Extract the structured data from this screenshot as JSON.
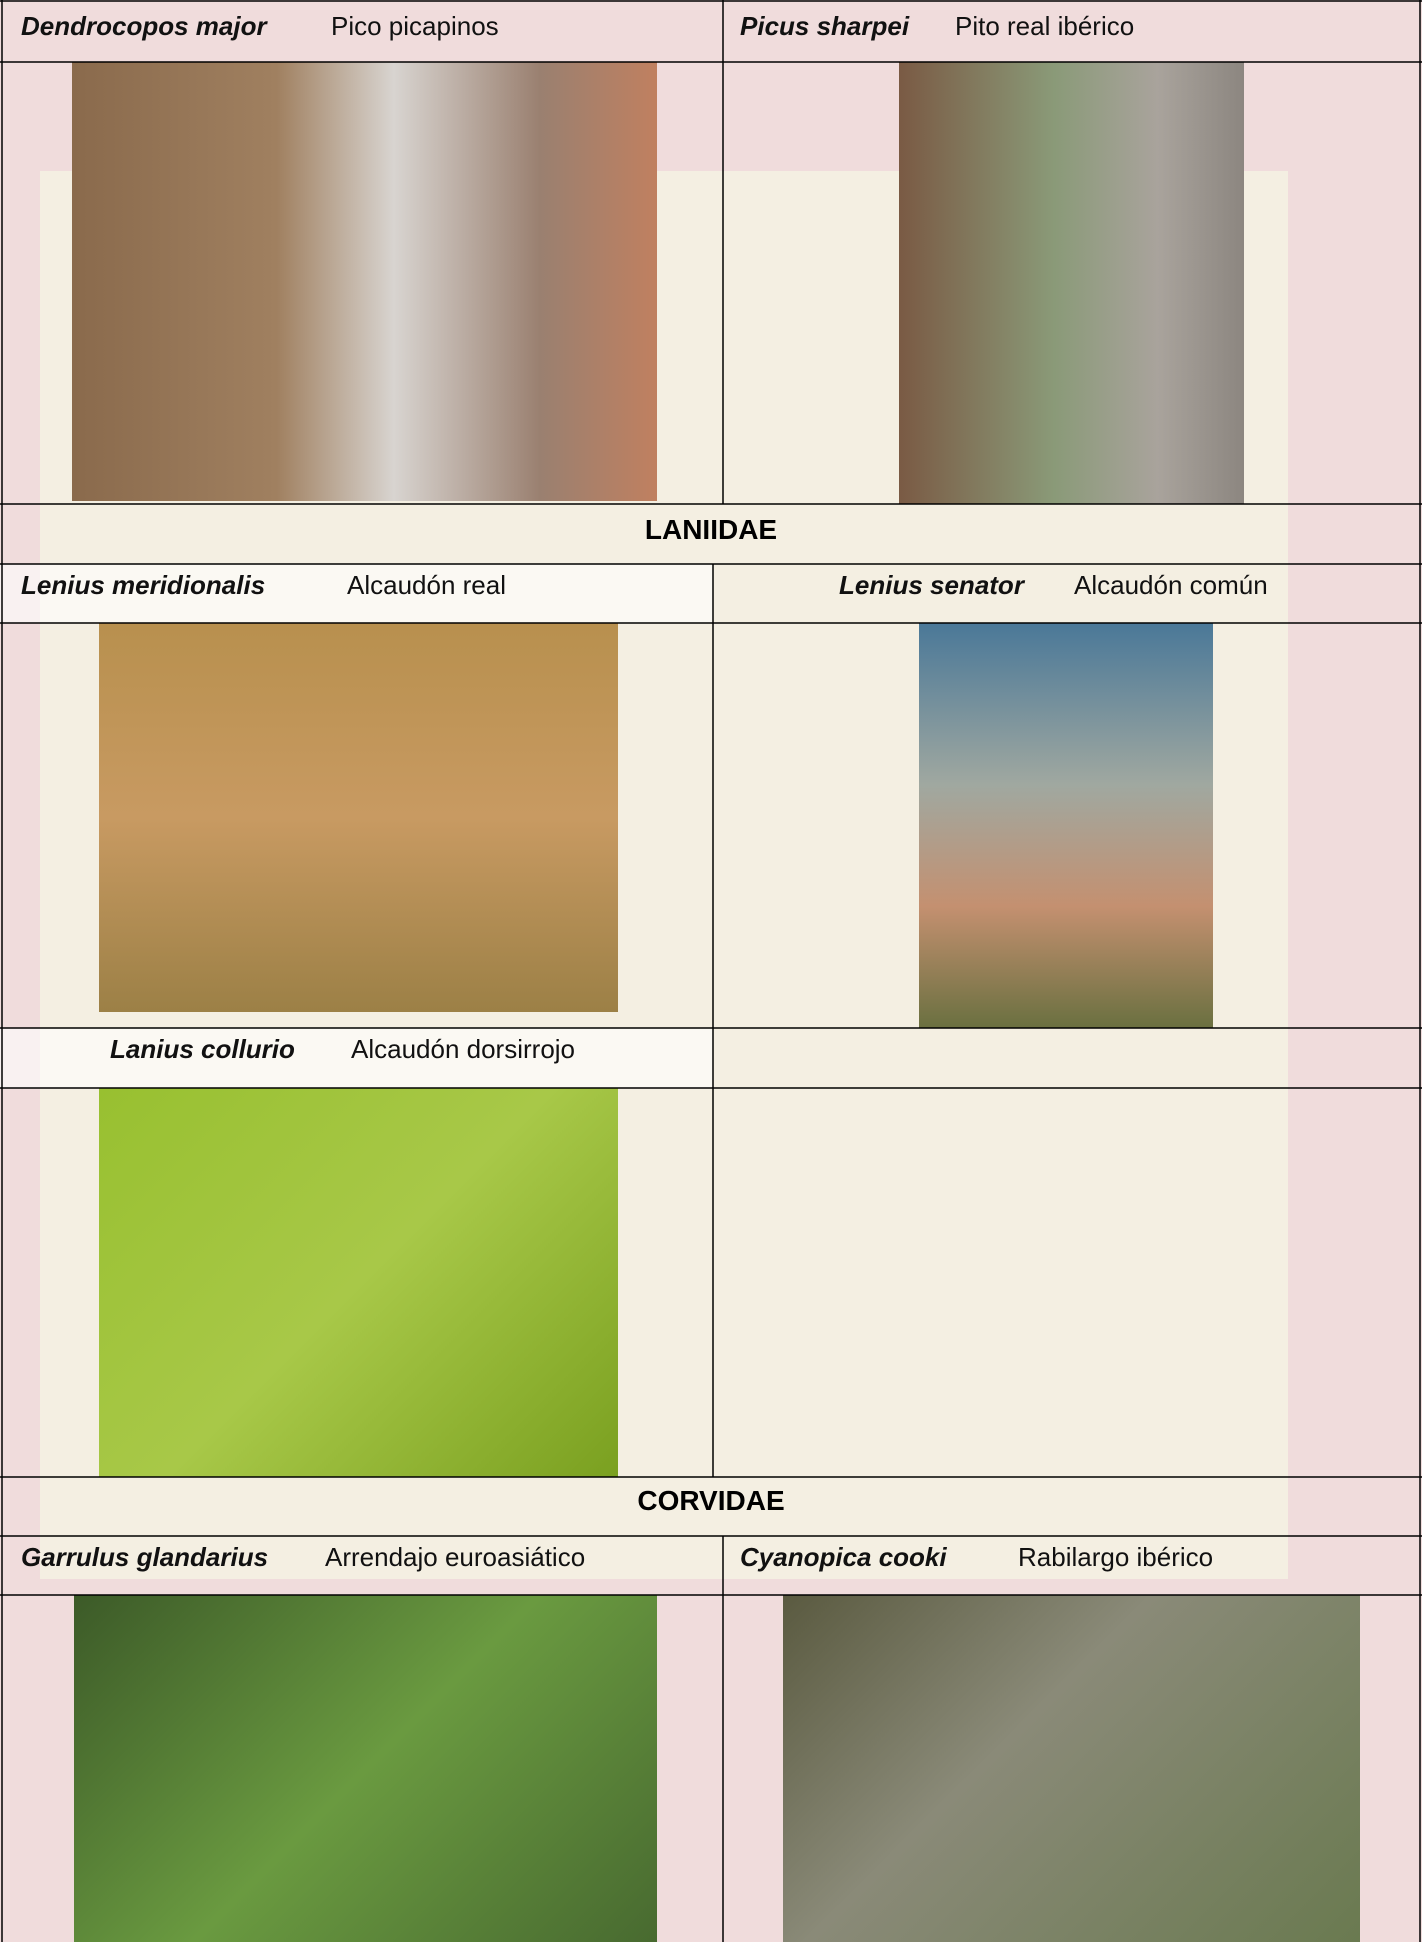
{
  "species": [
    {
      "scientific": "Dendrocopos major",
      "common": "Pico picapinos"
    },
    {
      "scientific": "Picus sharpei",
      "common": "Pito real ibérico"
    },
    {
      "scientific": "Lenius meridionalis",
      "common": "Alcaudón real"
    },
    {
      "scientific": "Lenius senator",
      "common": "Alcaudón común"
    },
    {
      "scientific": "Lanius collurio",
      "common": "Alcaudón dorsirrojo"
    },
    {
      "scientific": "Garrulus glandarius",
      "common": "Arrendajo euroasiático"
    },
    {
      "scientific": "Cyanopica cooki",
      "common": "Rabilargo ibérico"
    }
  ],
  "families": [
    "LANIIDAE",
    "CORVIDAE"
  ]
}
